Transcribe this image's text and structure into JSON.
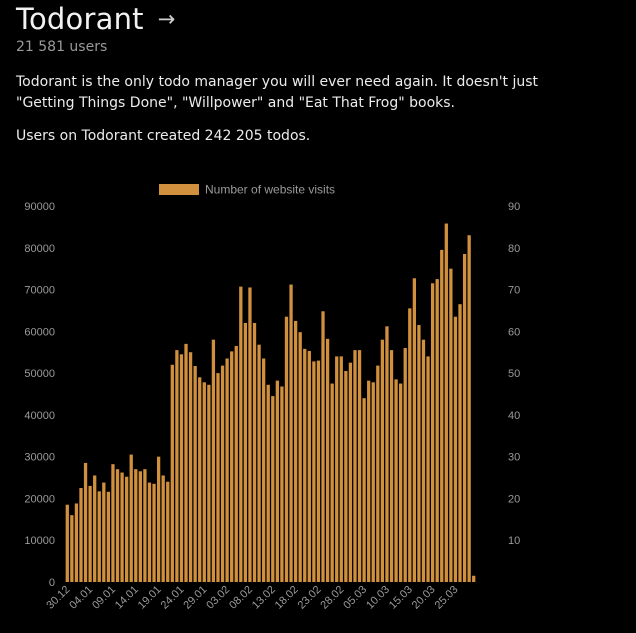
{
  "app": {
    "title": "Todorant",
    "users": "21 581 users",
    "description_line1": "Todorant is the only todo manager you will ever need again. It doesn't just",
    "description_line2": "\"Getting Things Done\", \"Willpower\" and \"Eat That Frog\" books.",
    "todos_text": "Users on Todorant created 242 205 todos.",
    "arrow_icon": "arrow-right-icon"
  },
  "colors": {
    "bar": "#d0903d",
    "axis_text": "#9a9a9a",
    "background": "#000000"
  },
  "chart_data": {
    "type": "bar",
    "legend": [
      "Number of website visits"
    ],
    "legend_position": "top",
    "grid": false,
    "ylim": [
      0,
      90000
    ],
    "y_ticks": [
      0,
      10000,
      20000,
      30000,
      40000,
      50000,
      60000,
      70000,
      80000,
      90000
    ],
    "right_axis_ticks": [
      "90",
      "80",
      "70",
      "60",
      "50",
      "40",
      "30",
      "20",
      "10"
    ],
    "x_tick_labels": [
      "30.12",
      "04.01",
      "09.01",
      "14.01",
      "19.01",
      "24.01",
      "29.01",
      "03.02",
      "08.02",
      "13.02",
      "18.02",
      "23.02",
      "28.02",
      "05.03",
      "10.03",
      "15.03",
      "20.03",
      "25.03"
    ],
    "series": [
      {
        "name": "Number of website visits",
        "values": [
          18500,
          16000,
          18800,
          22500,
          28500,
          23000,
          25500,
          21700,
          23800,
          21600,
          28200,
          27000,
          26200,
          25200,
          30500,
          27000,
          26500,
          27000,
          23800,
          23500,
          30000,
          25500,
          24000,
          52000,
          55500,
          54500,
          57000,
          55000,
          51700,
          49000,
          47800,
          47200,
          58000,
          50000,
          51800,
          53500,
          55200,
          56500,
          70700,
          62000,
          70500,
          62000,
          56800,
          53500,
          47200,
          44500,
          48200,
          46800,
          63500,
          71200,
          62500,
          59800,
          55800,
          55300,
          52800,
          53000,
          64800,
          58200,
          47500,
          54000,
          54000,
          50500,
          52500,
          55500,
          55500,
          44000,
          48200,
          47800,
          51800,
          58000,
          61200,
          55500,
          48500,
          47500,
          56000,
          65500,
          72700,
          61500,
          58000,
          54000,
          71500,
          72500,
          79500,
          85800,
          75000,
          63500,
          66500,
          78500,
          83000,
          1500
        ]
      }
    ]
  }
}
